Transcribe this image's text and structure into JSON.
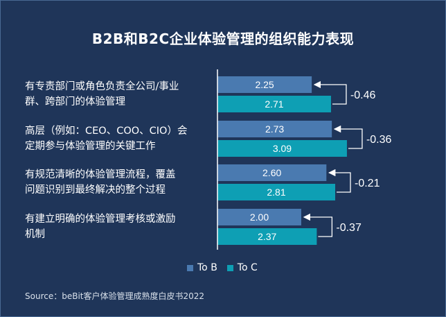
{
  "title": "B2B和B2C企业体验管理的组织能力表现",
  "source": "Source：beBit客户体验管理成熟度白皮书2022",
  "colors": {
    "background": "#1f3559",
    "to_b": "#4a7ab0",
    "to_c": "#0e9fb4",
    "axis": "#ffffff"
  },
  "chart_data": {
    "type": "bar",
    "orientation": "horizontal",
    "categories": [
      "有专责部门或角色负责全公司/事业群、跨部门的体验管理",
      "高层（例如：CEO、COO、CIO）会定期参与体验管理的关键工作",
      "有规范清晰的体验管理流程，覆盖问题识别到最终解决的整个过程",
      "有建立明确的体验管理考核或激励机制"
    ],
    "category_lines": [
      [
        "有专责部门或角色负责全公司/事业",
        "群、跨部门的体验管理"
      ],
      [
        "高层（例如：CEO、COO、CIO）会",
        "定期参与体验管理的关键工作"
      ],
      [
        "有规范清晰的体验管理流程，覆盖",
        "问题识别到最终解决的整个过程"
      ],
      [
        "有建立明确的体验管理考核或激励",
        "机制"
      ]
    ],
    "series": [
      {
        "name": "To B",
        "values": [
          2.25,
          2.73,
          2.6,
          2.0
        ],
        "labels": [
          "2.25",
          "2.73",
          "2.60",
          "2.00"
        ]
      },
      {
        "name": "To C",
        "values": [
          2.71,
          3.09,
          2.81,
          2.37
        ],
        "labels": [
          "2.71",
          "3.09",
          "2.81",
          "2.37"
        ]
      }
    ],
    "differences": [
      -0.46,
      -0.36,
      -0.21,
      -0.37
    ],
    "difference_labels": [
      "-0.46",
      "-0.36",
      "-0.21",
      "-0.37"
    ],
    "legend": {
      "position": "bottom",
      "entries": [
        "To B",
        "To C"
      ]
    },
    "xlim": [
      0,
      4
    ],
    "grid": false
  }
}
